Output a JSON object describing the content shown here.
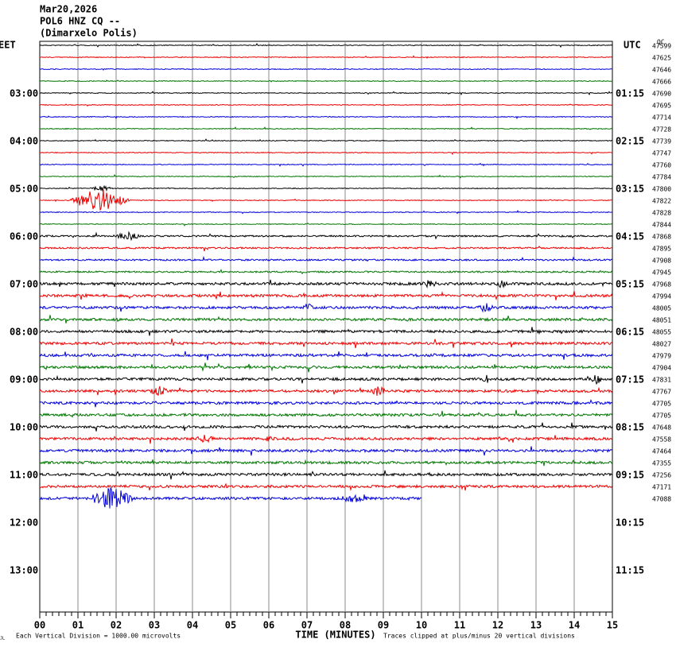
{
  "header": {
    "date": "Mar20,2026",
    "station": "POL6 HNZ CQ --",
    "location": "(Dimarxelo Polis)"
  },
  "left_axis": {
    "zone": "EET",
    "labels": [
      "03:00",
      "04:00",
      "05:00",
      "06:00",
      "07:00",
      "08:00",
      "09:00",
      "10:00",
      "11:00",
      "12:00",
      "13:00"
    ]
  },
  "right_axis": {
    "zone": "UTC",
    "qc": "QC",
    "labels": [
      "01:15",
      "02:15",
      "03:15",
      "04:15",
      "05:15",
      "06:15",
      "07:15",
      "08:15",
      "09:15",
      "10:15",
      "11:15"
    ],
    "trace_values": [
      "47599",
      "47625",
      "47646",
      "47666",
      "47690",
      "47695",
      "47714",
      "47728",
      "47739",
      "47747",
      "47760",
      "47784",
      "47800",
      "47822",
      "47828",
      "47844",
      "47868",
      "47895",
      "47908",
      "47945",
      "47968",
      "47994",
      "48005",
      "48051",
      "48055",
      "48027",
      "47979",
      "47904",
      "47831",
      "47767",
      "47705",
      "47705",
      "47648",
      "47558",
      "47464",
      "47355",
      "47256",
      "47171",
      "47088"
    ]
  },
  "x_axis": {
    "title": "TIME (MINUTES)",
    "ticks": [
      "00",
      "01",
      "02",
      "03",
      "04",
      "05",
      "06",
      "07",
      "08",
      "09",
      "10",
      "11",
      "12",
      "13",
      "14",
      "15"
    ]
  },
  "footer": {
    "scale": "Each Vertical Division = 1000.00 microvolts",
    "clip": "Traces clipped at plus/minus 20 vertical divisions",
    "mark": "JL"
  }
}
